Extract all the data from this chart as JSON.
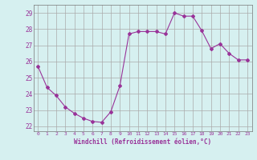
{
  "x": [
    0,
    1,
    2,
    3,
    4,
    5,
    6,
    7,
    8,
    9,
    10,
    11,
    12,
    13,
    14,
    15,
    16,
    17,
    18,
    19,
    20,
    21,
    22,
    23
  ],
  "y": [
    25.7,
    24.4,
    23.9,
    23.2,
    22.8,
    22.5,
    22.3,
    22.25,
    22.9,
    24.5,
    27.7,
    27.85,
    27.85,
    27.85,
    27.7,
    29.0,
    28.8,
    28.8,
    27.9,
    26.8,
    27.1,
    26.5,
    26.1,
    26.1
  ],
  "line_color": "#993399",
  "marker": "D",
  "marker_size": 2,
  "bg_color": "#d6f0f0",
  "grid_color": "#aaaaaa",
  "xlabel": "Windchill (Refroidissement éolien,°C)",
  "xlabel_color": "#993399",
  "tick_color": "#993399",
  "ylim": [
    21.7,
    29.5
  ],
  "xlim": [
    -0.5,
    23.5
  ],
  "yticks": [
    22,
    23,
    24,
    25,
    26,
    27,
    28,
    29
  ],
  "xticks": [
    0,
    1,
    2,
    3,
    4,
    5,
    6,
    7,
    8,
    9,
    10,
    11,
    12,
    13,
    14,
    15,
    16,
    17,
    18,
    19,
    20,
    21,
    22,
    23
  ]
}
